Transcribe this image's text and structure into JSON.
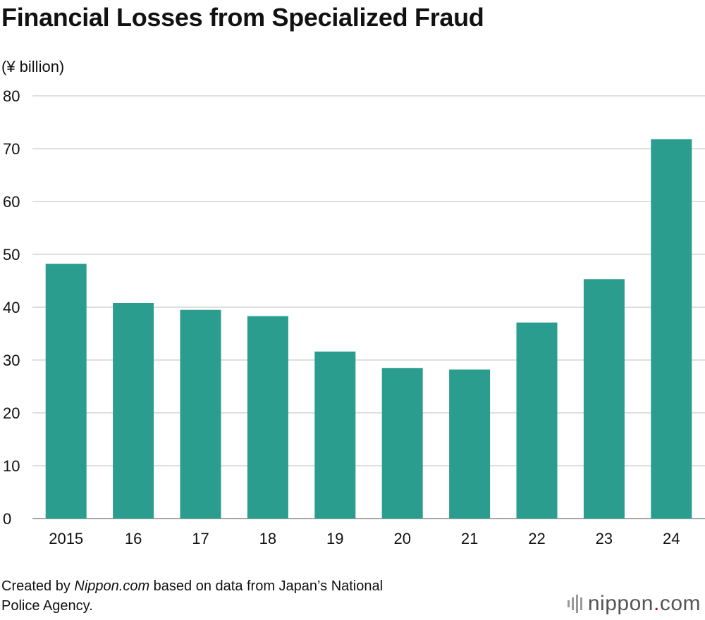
{
  "title": "Financial Losses from Specialized Fraud",
  "unit_label": "(¥ billion)",
  "footer": {
    "prefix": "Created by ",
    "source_name": "Nippon.com",
    "suffix_line1": " based on data from Japan’s National",
    "line2": "Police Agency."
  },
  "logo": {
    "name": "nippon",
    "dot": ".",
    "tld": "com"
  },
  "colors": {
    "bar": "#2a9d8f",
    "grid": "#cccccc",
    "text": "#111111"
  },
  "chart_data": {
    "type": "bar",
    "categories": [
      "2015",
      "16",
      "17",
      "18",
      "19",
      "20",
      "21",
      "22",
      "23",
      "24"
    ],
    "values": [
      48.2,
      40.8,
      39.5,
      38.3,
      31.6,
      28.5,
      28.2,
      37.1,
      45.3,
      71.8
    ],
    "title": "Financial Losses from Specialized Fraud",
    "ylabel": "(¥ billion)",
    "ylim": [
      0,
      80
    ],
    "yticks": [
      0,
      10,
      20,
      30,
      40,
      50,
      60,
      70,
      80
    ],
    "grid": true
  }
}
